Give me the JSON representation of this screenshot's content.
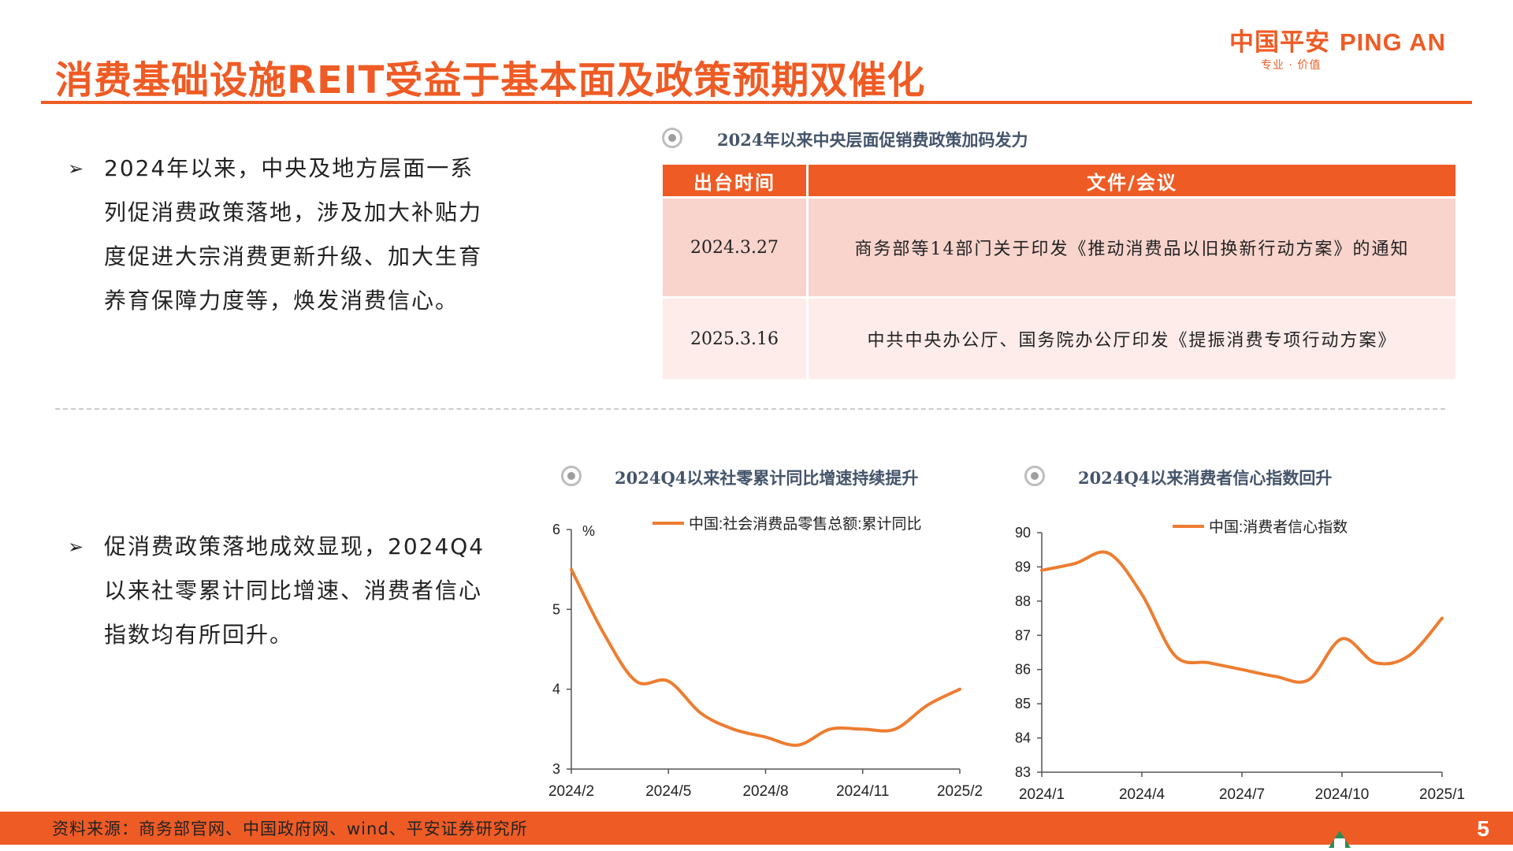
{
  "header": {
    "title": "消费基础设施REIT受益于基本面及政策预期双催化",
    "logo_cn": "中国平安",
    "logo_en": "PING AN",
    "logo_tagline": "专业 · 价值",
    "brand_color": "#ef5b24"
  },
  "bullets": [
    {
      "marker": "➢",
      "text": "2024年以来，中央及地方层面一系列促消费政策落地，涉及加大补贴力度促进大宗消费更新升级、加大生育养育保障力度等，焕发消费信心。"
    },
    {
      "marker": "➢",
      "text": "促消费政策落地成效显现，2024Q4以来社零累计同比增速、消费者信心指数均有所回升。"
    }
  ],
  "policy_section": {
    "caption": "2024年以来中央层面促销费政策加码发力",
    "columns": [
      "出台时间",
      "文件/会议"
    ],
    "rows": [
      {
        "date": "2024.3.27",
        "doc": "商务部等14部门关于印发《推动消费品以旧换新行动方案》的通知"
      },
      {
        "date": "2025.3.16",
        "doc": "中共中央办公厅、国务院办公厅印发《提振消费专项行动方案》"
      }
    ]
  },
  "chart_data": [
    {
      "type": "line",
      "caption": "2024Q4以来社零累计同比增速持续提升",
      "unit": "%",
      "series": [
        {
          "name": "中国:社会消费品零售总额:累计同比",
          "color": "#ed7d31",
          "x": [
            "2024/2",
            "2024/3",
            "2024/4",
            "2024/5",
            "2024/6",
            "2024/7",
            "2024/8",
            "2024/9",
            "2024/10",
            "2024/11",
            "2024/12",
            "2025/1",
            "2025/2"
          ],
          "values": [
            5.5,
            4.7,
            4.1,
            4.1,
            3.7,
            3.5,
            3.4,
            3.3,
            3.5,
            3.5,
            3.5,
            3.8,
            4.0
          ]
        }
      ],
      "x_ticks": [
        "2024/2",
        "2024/5",
        "2024/8",
        "2024/11",
        "2025/2"
      ],
      "ylim": [
        3,
        6
      ],
      "y_ticks": [
        "3",
        "4",
        "5",
        "6"
      ],
      "grid": false,
      "legend": "top"
    },
    {
      "type": "line",
      "caption": "2024Q4以来消费者信心指数回升",
      "series": [
        {
          "name": "中国:消费者信心指数",
          "color": "#ed7d31",
          "x": [
            "2024/1",
            "2024/2",
            "2024/3",
            "2024/4",
            "2024/5",
            "2024/6",
            "2024/7",
            "2024/8",
            "2024/9",
            "2024/10",
            "2024/11",
            "2024/12",
            "2025/1"
          ],
          "values": [
            88.9,
            89.1,
            89.4,
            88.2,
            86.4,
            86.2,
            86.0,
            85.8,
            85.7,
            86.9,
            86.2,
            86.4,
            87.5
          ]
        }
      ],
      "x_ticks": [
        "2024/1",
        "2024/4",
        "2024/7",
        "2024/10",
        "2025/1"
      ],
      "ylim": [
        83,
        90
      ],
      "y_ticks": [
        "83",
        "84",
        "85",
        "86",
        "87",
        "88",
        "89",
        "90"
      ],
      "grid": false,
      "legend": "top"
    }
  ],
  "footer": {
    "source": "资料来源：商务部官网、中国政府网、wind、平安证券研究所",
    "page": "5"
  }
}
